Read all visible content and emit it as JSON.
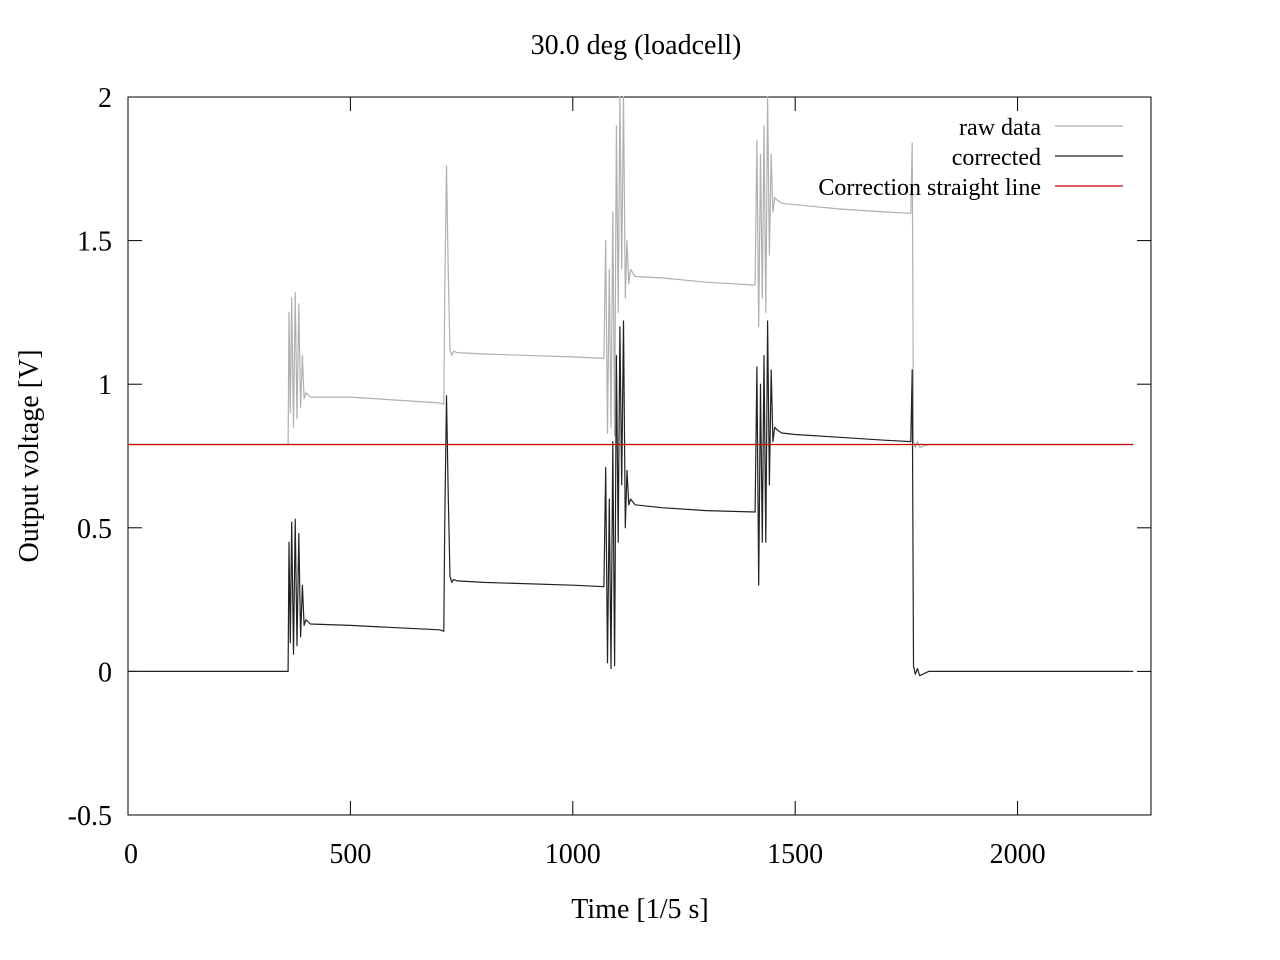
{
  "chart_data": {
    "type": "line",
    "title": "30.0 deg (loadcell)",
    "xlabel": "Time [1/5 s]",
    "ylabel": "Output voltage [V]",
    "xlim": [
      0,
      2300
    ],
    "ylim": [
      -0.5,
      2
    ],
    "xticks": [
      0,
      500,
      1000,
      1500,
      2000
    ],
    "xtick_labels": [
      "0",
      "500",
      "1000",
      "1500",
      "2000"
    ],
    "yticks": [
      -0.5,
      0,
      0.5,
      1,
      1.5,
      2
    ],
    "ytick_labels": [
      "-0.5",
      "0",
      "0.5",
      "1",
      "1.5",
      "2"
    ],
    "grid": false,
    "legend_position": "top-right",
    "series": [
      {
        "name": "raw data",
        "color": "#b0b0b0",
        "x": [
          0,
          360,
          362,
          365,
          368,
          372,
          376,
          380,
          384,
          388,
          392,
          396,
          400,
          410,
          500,
          700,
          710,
          712,
          716,
          720,
          724,
          728,
          732,
          740,
          800,
          1000,
          1070,
          1074,
          1078,
          1082,
          1086,
          1090,
          1094,
          1098,
          1102,
          1106,
          1110,
          1114,
          1118,
          1122,
          1126,
          1130,
          1140,
          1200,
          1300,
          1410,
          1414,
          1418,
          1422,
          1426,
          1430,
          1434,
          1438,
          1442,
          1446,
          1450,
          1454,
          1460,
          1470,
          1500,
          1600,
          1700,
          1760,
          1763,
          1766,
          1770,
          1775,
          1780,
          1800,
          2000,
          2260
        ],
        "y": [
          0.79,
          0.79,
          1.25,
          0.9,
          1.3,
          0.85,
          1.32,
          0.88,
          1.28,
          0.92,
          1.1,
          0.95,
          0.97,
          0.955,
          0.955,
          0.935,
          0.93,
          1.3,
          1.76,
          1.4,
          1.12,
          1.1,
          1.115,
          1.11,
          1.105,
          1.095,
          1.09,
          1.5,
          0.83,
          1.4,
          0.85,
          1.6,
          0.82,
          1.9,
          1.25,
          2.0,
          1.4,
          2.0,
          1.3,
          1.5,
          1.35,
          1.4,
          1.375,
          1.37,
          1.355,
          1.345,
          1.85,
          1.2,
          1.8,
          1.3,
          1.9,
          1.25,
          2.0,
          1.45,
          1.8,
          1.6,
          1.65,
          1.64,
          1.63,
          1.625,
          1.61,
          1.6,
          1.595,
          1.84,
          0.8,
          0.78,
          0.8,
          0.78,
          0.79,
          0.79,
          0.79
        ]
      },
      {
        "name": "corrected",
        "color": "#222222",
        "x": [
          0,
          360,
          362,
          365,
          368,
          372,
          376,
          380,
          384,
          388,
          392,
          396,
          400,
          410,
          500,
          700,
          710,
          712,
          716,
          720,
          724,
          728,
          732,
          740,
          800,
          1000,
          1070,
          1074,
          1078,
          1082,
          1086,
          1090,
          1094,
          1098,
          1102,
          1106,
          1110,
          1114,
          1118,
          1122,
          1126,
          1130,
          1140,
          1200,
          1300,
          1410,
          1414,
          1418,
          1422,
          1426,
          1430,
          1434,
          1438,
          1442,
          1446,
          1450,
          1454,
          1460,
          1470,
          1500,
          1600,
          1700,
          1760,
          1763,
          1766,
          1770,
          1775,
          1780,
          1800,
          2000,
          2260
        ],
        "y": [
          0.0,
          0.0,
          0.45,
          0.1,
          0.52,
          0.06,
          0.53,
          0.09,
          0.48,
          0.12,
          0.3,
          0.16,
          0.18,
          0.165,
          0.16,
          0.145,
          0.14,
          0.5,
          0.96,
          0.62,
          0.33,
          0.31,
          0.32,
          0.315,
          0.31,
          0.3,
          0.295,
          0.71,
          0.03,
          0.6,
          0.01,
          0.8,
          0.02,
          1.1,
          0.45,
          1.2,
          0.65,
          1.22,
          0.5,
          0.7,
          0.58,
          0.6,
          0.58,
          0.57,
          0.56,
          0.555,
          1.06,
          0.3,
          1.0,
          0.45,
          1.1,
          0.45,
          1.22,
          0.65,
          1.05,
          0.8,
          0.85,
          0.84,
          0.83,
          0.825,
          0.815,
          0.805,
          0.8,
          1.05,
          0.02,
          -0.01,
          0.01,
          -0.015,
          0.0,
          0.0,
          0.0
        ]
      },
      {
        "name": "Correction straight line",
        "color": "#cc0000",
        "x": [
          0,
          2260
        ],
        "y": [
          0.79,
          0.79
        ]
      }
    ]
  }
}
